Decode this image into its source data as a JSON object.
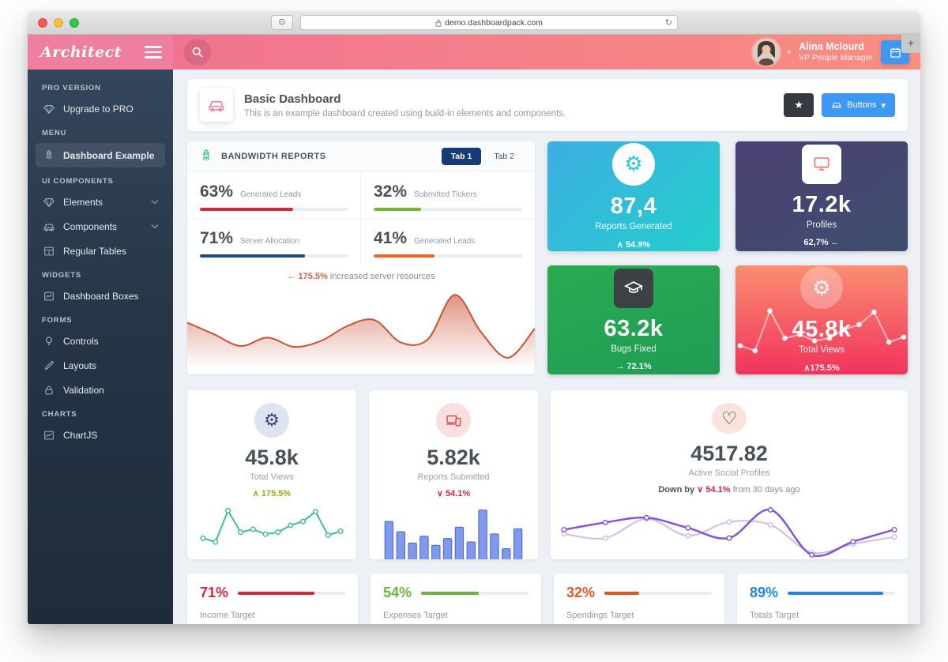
{
  "browser": {
    "url": "demo.dashboardpack.com",
    "reload": "↻",
    "shield": "⊙",
    "new_tab": "+"
  },
  "header": {
    "logo": "Architect",
    "user_name": "Alina Mclourd",
    "user_role": "VP People Manager",
    "caret": "▾"
  },
  "sidebar": {
    "sections": [
      {
        "title": "PRO VERSION",
        "items": [
          {
            "label": "Upgrade to PRO"
          }
        ]
      },
      {
        "title": "MENU",
        "items": [
          {
            "label": "Dashboard Example"
          }
        ]
      },
      {
        "title": "UI COMPONENTS",
        "items": [
          {
            "label": "Elements"
          },
          {
            "label": "Components"
          },
          {
            "label": "Regular Tables"
          }
        ]
      },
      {
        "title": "WIDGETS",
        "items": [
          {
            "label": "Dashboard Boxes"
          }
        ]
      },
      {
        "title": "FORMS",
        "items": [
          {
            "label": "Controls"
          },
          {
            "label": "Layouts"
          },
          {
            "label": "Validation"
          }
        ]
      },
      {
        "title": "CHARTS",
        "items": [
          {
            "label": "ChartJS"
          }
        ]
      }
    ]
  },
  "page": {
    "title": "Basic Dashboard",
    "subtitle": "This is an example dashboard created using build-in elements and components.",
    "star": "★",
    "buttons_label": "Buttons",
    "buttons_caret": "▾"
  },
  "bandwidth": {
    "title": "BANDWIDTH REPORTS",
    "tabs": [
      "Tab 1",
      "Tab 2"
    ],
    "stats": [
      {
        "value": "63%",
        "label": "Generated Leads",
        "pct": 63,
        "color": "#d7263d"
      },
      {
        "value": "32%",
        "label": "Submitted Tickers",
        "pct": 32,
        "color": "#76b82a"
      },
      {
        "value": "71%",
        "label": "Server Allocation",
        "pct": 71,
        "color": "#1b4a7e"
      },
      {
        "value": "41%",
        "label": "Generated Leads",
        "pct": 41,
        "color": "#e8681c"
      }
    ],
    "note_highlight": "← 175.5%",
    "note_text": " increased server resources"
  },
  "boxes": [
    {
      "value": "87,4",
      "label": "Reports Generated",
      "delta": "∧ 54.9%",
      "icon": "gear",
      "gear_glyph": "⚙"
    },
    {
      "value": "17.2k",
      "label": "Profiles",
      "delta": "62,7% ←",
      "icon": "monitor"
    },
    {
      "value": "63.2k",
      "label": "Bugs Fixed",
      "delta": "→ 72.1%",
      "icon": "graduation-cap"
    },
    {
      "value": "45.8k",
      "label": "Total Views",
      "delta": "∧175.5%",
      "icon": "gear",
      "gear_glyph": "⚙"
    }
  ],
  "cards": [
    {
      "value": "45.8k",
      "label": "Total Views",
      "delta": "∧ 175.5%",
      "gear_glyph": "⚙"
    },
    {
      "value": "5.82k",
      "label": "Reports Submitted",
      "delta": "∨ 54.1%"
    },
    {
      "value": "4517.82",
      "label": "Active Social Profiles",
      "delta_prefix": "Down by ",
      "delta": "∨ 54.1%",
      "delta_suffix": " from 30 days ago",
      "heart_glyph": "♡"
    }
  ],
  "targets": [
    {
      "value": "71%",
      "label": "Income Target",
      "pct": 71,
      "color": "#d7263d"
    },
    {
      "value": "54%",
      "label": "Expenses Target",
      "pct": 54,
      "color": "#6cb33f"
    },
    {
      "value": "32%",
      "label": "Spendings Target",
      "pct": 32,
      "color": "#e0581d"
    },
    {
      "value": "89%",
      "label": "Totals Target",
      "pct": 89,
      "color": "#1e87e5"
    }
  ],
  "colors": {
    "header_pink": "#ee7f9e",
    "header_coral": "#f88d80",
    "sidebar_navy": "#263646",
    "box_cyan": [
      "#3daee3",
      "#23cfca"
    ],
    "box_indigo": [
      "#4b3f72",
      "#3e4f6e"
    ],
    "box_green": [
      "#2aab52",
      "#1f9c55"
    ],
    "box_red": [
      "#f98e71",
      "#f2335c"
    ],
    "tab_active": "#143d75",
    "accent_blue_button": "#3e97f2"
  },
  "chart_data": [
    {
      "id": "bandwidth-area",
      "type": "area",
      "smooth": true,
      "values": [
        62,
        48,
        34,
        44,
        33,
        40,
        58,
        65,
        38,
        42,
        95,
        50,
        20,
        55
      ],
      "color": "#cc5237",
      "title": "Bandwidth usage trend (unlabeled axes)",
      "xlabel": "",
      "ylabel": "",
      "ylim": [
        0,
        100
      ]
    },
    {
      "id": "total-views-line",
      "type": "line",
      "smooth": false,
      "values": [
        32,
        24,
        88,
        44,
        50,
        40,
        44,
        58,
        66,
        86,
        38,
        46
      ],
      "color": "#3ac47d",
      "marker_fill": "#ffffff",
      "title": "Total Views sparkline (unlabeled axes)",
      "ylim": [
        0,
        100
      ]
    },
    {
      "id": "total-views-spark",
      "type": "line",
      "smooth": false,
      "values": [
        32,
        24,
        88,
        44,
        50,
        40,
        44,
        58,
        66,
        86,
        38,
        46
      ],
      "color": "rgba(255,255,255,0.55)",
      "marker_fill": "#ffffff",
      "pad_top": 48,
      "pad_bottom": 12,
      "pad_x": 6,
      "title": "Total Views sparkline overlay (unlabeled axes)",
      "ylim": [
        0,
        100
      ]
    },
    {
      "id": "reports-bars",
      "type": "bar",
      "values": [
        68,
        50,
        30,
        42,
        26,
        38,
        58,
        32,
        88,
        46,
        20,
        55
      ],
      "color": "#8099ea",
      "stroke": "#4a66c9",
      "title": "Reports Submitted bars (unlabeled axes)",
      "ylim": [
        0,
        100
      ]
    },
    {
      "id": "social-lines",
      "type": "line",
      "smooth": true,
      "pad_x": 12,
      "series": [
        {
          "values": [
            45,
            38,
            70,
            42,
            65,
            60,
            14,
            28,
            40
          ],
          "color": "#cdbcec",
          "width": 2
        },
        {
          "values": [
            52,
            64,
            72,
            55,
            38,
            85,
            10,
            32,
            52
          ],
          "color": "#8354d8",
          "width": 2.5
        }
      ],
      "marker_fill": "#ffffff",
      "title": "Active Social Profiles trend, two series (unlabeled axes)",
      "ylim": [
        0,
        100
      ]
    }
  ]
}
